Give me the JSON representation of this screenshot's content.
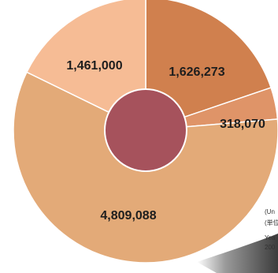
{
  "chart_data": {
    "type": "pie",
    "donut": true,
    "values": [
      1626273,
      318070,
      4809088,
      1461000
    ],
    "labels": [
      "1,626,273",
      "318,070",
      "4,809,088",
      "1,461,000"
    ],
    "colors": [
      "#d0804e",
      "#df9468",
      "#e3aa78",
      "#f6bc95"
    ],
    "hole_color": "#a6525c",
    "start_angle_deg": 0,
    "direction": "clockwise"
  },
  "notes": {
    "unit_en": "(Un",
    "unit_jp": "(単位",
    "year_label": "Yea",
    "year_value": "200"
  }
}
